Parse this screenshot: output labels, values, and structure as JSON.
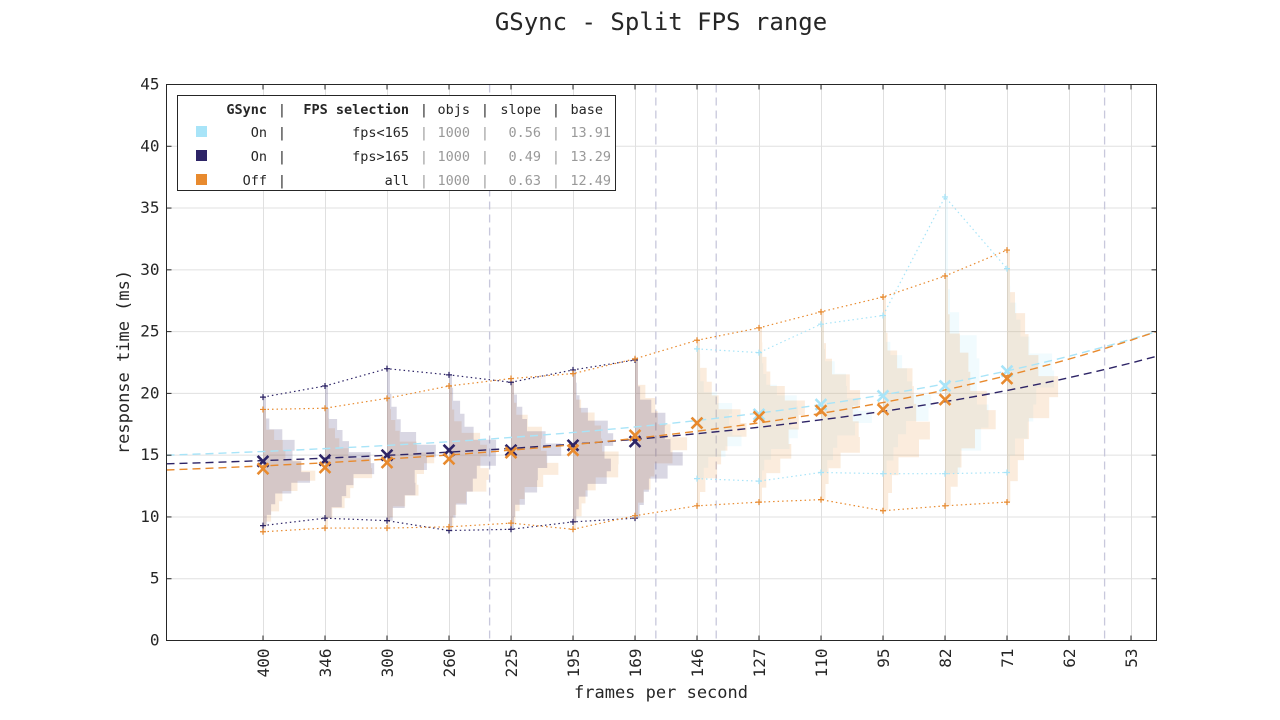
{
  "chart_data": {
    "type": "line",
    "title": "GSync - Split FPS range",
    "xlabel": "frames per second",
    "ylabel": "response time (ms)",
    "x_ticks": [
      "400",
      "346",
      "300",
      "260",
      "225",
      "195",
      "169",
      "146",
      "127",
      "110",
      "95",
      "82",
      "71",
      "62",
      "53"
    ],
    "ylim": [
      0,
      45
    ],
    "y_ticks": [
      0,
      5,
      10,
      15,
      20,
      25,
      30,
      35,
      40,
      45
    ],
    "grid": true,
    "legend_position": "top-left",
    "legend": {
      "header": {
        "gsync": "GSync",
        "sel": "FPS selection",
        "objs": "objs",
        "slope": "slope",
        "base": "base"
      },
      "entries": [
        {
          "gsync": "On",
          "sel": "fps<165",
          "objs": "1000",
          "slope": "0.56",
          "base": "13.91"
        },
        {
          "gsync": "On",
          "sel": "fps>165",
          "objs": "1000",
          "slope": "0.49",
          "base": "13.29"
        },
        {
          "gsync": "Off",
          "sel": "all",
          "objs": "1000",
          "slope": "0.63",
          "base": "12.49"
        }
      ]
    },
    "vertical_dashed_markers": [
      240,
      165,
      144,
      60
    ],
    "series": [
      {
        "color": "#a8e4f8",
        "categories": [
          "146",
          "127",
          "110",
          "95",
          "82",
          "71"
        ],
        "mean": [
          17.6,
          18.3,
          19.1,
          19.8,
          20.6,
          21.8
        ],
        "max": [
          23.6,
          23.3,
          25.6,
          26.3,
          35.9,
          30.1
        ],
        "min": [
          13.1,
          12.9,
          13.6,
          13.5,
          13.5,
          13.6
        ],
        "fit_y_at_left_edge": 15.0,
        "fit_y_at_right_edge": 25.0
      },
      {
        "color": "#2d2466",
        "categories": [
          "400",
          "346",
          "300",
          "260",
          "225",
          "195",
          "169"
        ],
        "mean": [
          14.5,
          14.6,
          15.0,
          15.4,
          15.4,
          15.8,
          16.1
        ],
        "max": [
          19.7,
          20.6,
          22.0,
          21.5,
          20.9,
          21.9,
          22.7
        ],
        "min": [
          9.3,
          9.9,
          9.7,
          8.9,
          9.0,
          9.6,
          9.9
        ],
        "fit_y_at_left_edge": 14.3,
        "fit_y_at_right_edge": 23.0
      },
      {
        "color": "#e88a2e",
        "categories": [
          "400",
          "346",
          "300",
          "260",
          "225",
          "195",
          "169",
          "146",
          "127",
          "110",
          "95",
          "82",
          "71"
        ],
        "mean": [
          13.9,
          14.0,
          14.4,
          14.7,
          15.2,
          15.4,
          16.6,
          17.6,
          18.1,
          18.6,
          18.7,
          19.5,
          21.2
        ],
        "max": [
          18.7,
          18.8,
          19.6,
          20.6,
          21.2,
          21.6,
          22.8,
          24.3,
          25.3,
          26.6,
          27.8,
          29.5,
          31.6
        ],
        "min": [
          8.8,
          9.1,
          9.1,
          9.2,
          9.5,
          9.0,
          10.1,
          10.9,
          11.2,
          11.4,
          10.5,
          10.9,
          11.2
        ],
        "fit_y_at_left_edge": 13.8,
        "fit_y_at_right_edge": 25.0
      }
    ]
  }
}
